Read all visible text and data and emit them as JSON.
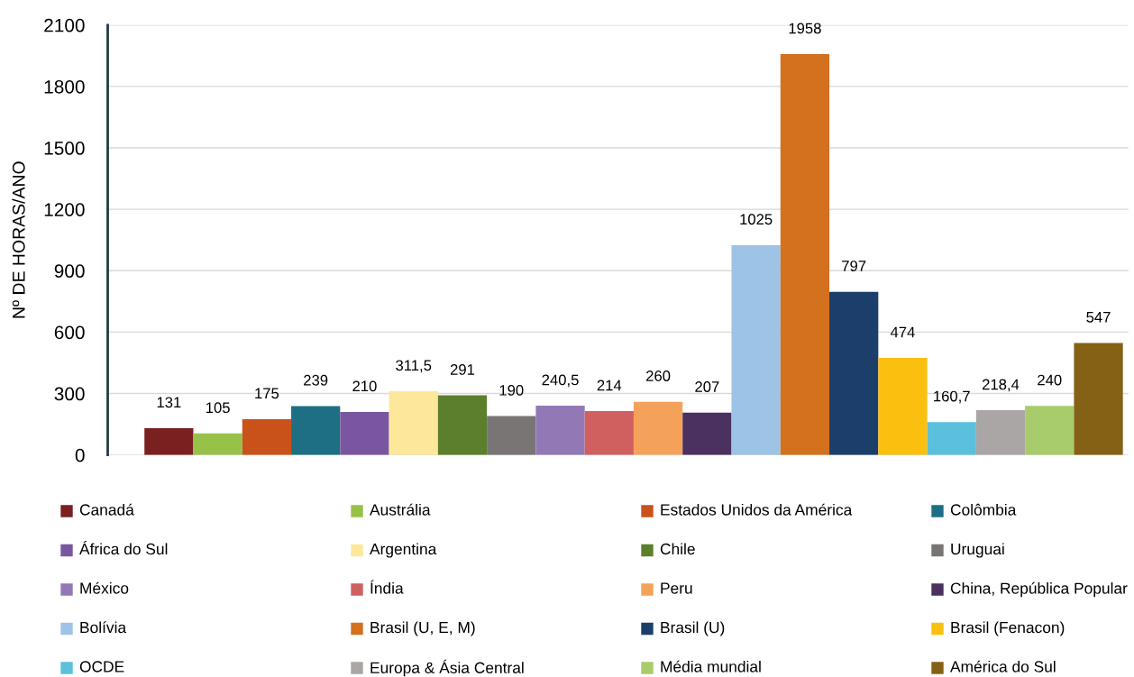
{
  "chart_data": {
    "type": "bar",
    "ylabel": "Nº DE HORAS/ANO",
    "categories": [
      null
    ],
    "ylim": [
      0,
      2100
    ],
    "yticks": [
      0,
      300,
      600,
      900,
      1200,
      1500,
      1800,
      2100
    ],
    "grid": "y",
    "legend": "bottom",
    "series": [
      {
        "name": "Canadá",
        "color": "#7b2020",
        "values": [
          131
        ],
        "value_labels": [
          "131"
        ]
      },
      {
        "name": "Austrália",
        "color": "#98c14a",
        "values": [
          105
        ],
        "value_labels": [
          "105"
        ]
      },
      {
        "name": "Estados Unidos da América",
        "color": "#c9521b",
        "values": [
          175
        ],
        "value_labels": [
          "175"
        ]
      },
      {
        "name": "Colômbia",
        "color": "#1e6f84",
        "values": [
          239
        ],
        "value_labels": [
          "239"
        ]
      },
      {
        "name": "África do Sul",
        "color": "#7a56a0",
        "values": [
          210
        ],
        "value_labels": [
          "210"
        ]
      },
      {
        "name": "Argentina",
        "color": "#fde79a",
        "values": [
          311.5
        ],
        "value_labels": [
          "311,5"
        ]
      },
      {
        "name": "Chile",
        "color": "#5b7f2d",
        "values": [
          291
        ],
        "value_labels": [
          "291"
        ]
      },
      {
        "name": "Uruguai",
        "color": "#7a7575",
        "values": [
          190
        ],
        "value_labels": [
          "190"
        ]
      },
      {
        "name": "México",
        "color": "#9279b6",
        "values": [
          240.5
        ],
        "value_labels": [
          "240,5"
        ]
      },
      {
        "name": "Índia",
        "color": "#d06060",
        "values": [
          214
        ],
        "value_labels": [
          "214"
        ]
      },
      {
        "name": "Peru",
        "color": "#f4a25a",
        "values": [
          260
        ],
        "value_labels": [
          "260"
        ]
      },
      {
        "name": "China, República Popular",
        "color": "#4a3160",
        "values": [
          207
        ],
        "value_labels": [
          "207"
        ]
      },
      {
        "name": "Bolívia",
        "color": "#9dc3e6",
        "values": [
          1025
        ],
        "value_labels": [
          "1025"
        ]
      },
      {
        "name": "Brasil (U, E, M)",
        "color": "#d3711f",
        "values": [
          1958
        ],
        "value_labels": [
          "1958"
        ]
      },
      {
        "name": "Brasil (U)",
        "color": "#1c3e6a",
        "values": [
          797
        ],
        "value_labels": [
          "797"
        ]
      },
      {
        "name": "Brasil (Fenacon)",
        "color": "#fbbf10",
        "values": [
          474
        ],
        "value_labels": [
          "474"
        ]
      },
      {
        "name": "OCDE",
        "color": "#5bc0dc",
        "values": [
          160.7
        ],
        "value_labels": [
          "160,7"
        ]
      },
      {
        "name": "Europa & Ásia Central",
        "color": "#aaa6a5",
        "values": [
          218.4
        ],
        "value_labels": [
          "218,4"
        ]
      },
      {
        "name": "Média mundial",
        "color": "#a8cc6c",
        "values": [
          240
        ],
        "value_labels": [
          "240"
        ]
      },
      {
        "name": "América do Sul",
        "color": "#846114",
        "values": [
          547
        ],
        "value_labels": [
          "547"
        ]
      }
    ]
  }
}
